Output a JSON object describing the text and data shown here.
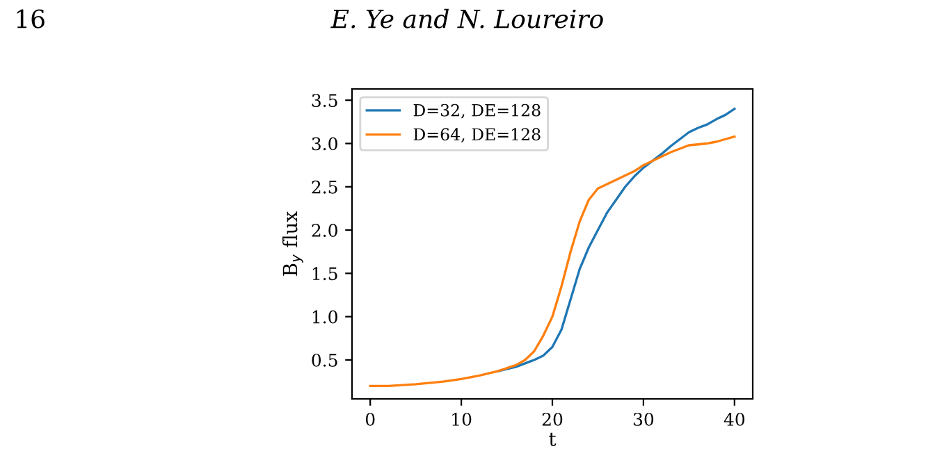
{
  "chart_data": {
    "type": "line",
    "xlabel": "t",
    "ylabel": "B$_{y}$ flux",
    "annotations": [
      "16",
      "E. Ye and N. Loureiro"
    ],
    "x": [
      0,
      2,
      5,
      8,
      10,
      12,
      14,
      16,
      17,
      18,
      19,
      20,
      21,
      22,
      23,
      24,
      25,
      26,
      27,
      28,
      29,
      30,
      31,
      32,
      33,
      34,
      35,
      36,
      37,
      38,
      39,
      40
    ],
    "series": [
      {
        "name": "D=32, DE=128",
        "color": "#1f77b4",
        "values": [
          null,
          null,
          null,
          null,
          null,
          null,
          0.37,
          0.42,
          0.46,
          0.5,
          0.55,
          0.65,
          0.85,
          1.2,
          1.55,
          1.8,
          2.0,
          2.2,
          2.35,
          2.5,
          2.62,
          2.72,
          2.8,
          2.88,
          2.97,
          3.05,
          3.13,
          3.18,
          3.22,
          3.28,
          3.33,
          3.4
        ]
      },
      {
        "name": "D=64, DE=128",
        "color": "#ff7f0e",
        "values": [
          0.2,
          0.2,
          0.22,
          0.25,
          0.28,
          0.32,
          0.37,
          0.44,
          0.5,
          0.6,
          0.78,
          1.0,
          1.35,
          1.75,
          2.1,
          2.35,
          2.48,
          2.53,
          2.58,
          2.63,
          2.68,
          2.75,
          2.8,
          2.85,
          2.9,
          2.94,
          2.98,
          2.99,
          3.0,
          3.02,
          3.05,
          3.08
        ]
      }
    ],
    "xlim": [
      -2,
      42
    ],
    "xticks": [
      0,
      10,
      20,
      30,
      40
    ],
    "ylim": [
      0.05,
      3.63
    ],
    "yticks": [
      0.5,
      {
        "value": 1,
        "label": "1.0"
      },
      1.5,
      {
        "value": 2,
        "label": "2.0"
      },
      2.5,
      {
        "value": 3,
        "label": "3.0"
      },
      3.5
    ],
    "grid": false,
    "legend": "top left",
    "line_style": "solid",
    "marker": "none"
  }
}
